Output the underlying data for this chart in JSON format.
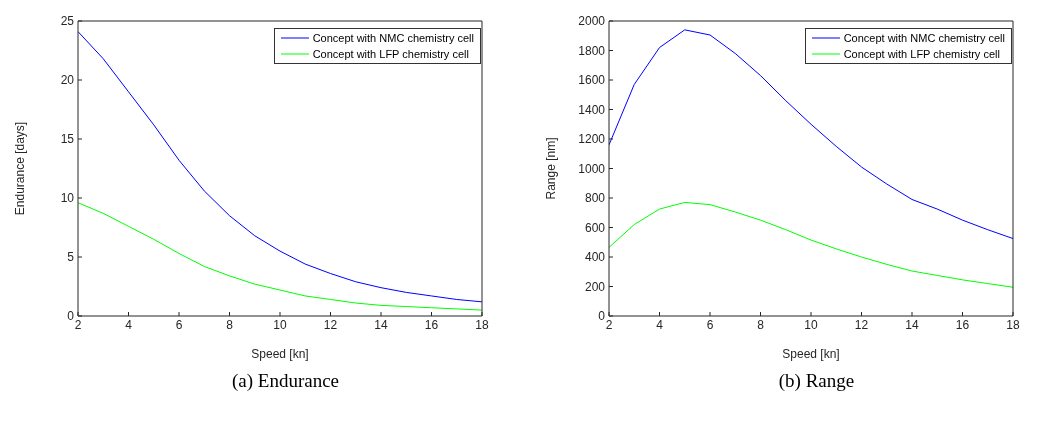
{
  "chart_data": [
    {
      "type": "line",
      "title": "(a) Endurance",
      "xlabel": "Speed [kn]",
      "ylabel": "Endurance [days]",
      "x": [
        2,
        3,
        4,
        5,
        6,
        7,
        8,
        9,
        10,
        11,
        12,
        13,
        14,
        15,
        16,
        17,
        18
      ],
      "series": [
        {
          "name": "Concept with NMC chemistry cell",
          "color": "#0000ff",
          "values": [
            24.1,
            21.8,
            19.0,
            16.2,
            13.2,
            10.6,
            8.5,
            6.8,
            5.5,
            4.4,
            3.6,
            2.9,
            2.4,
            2.0,
            1.7,
            1.4,
            1.2
          ]
        },
        {
          "name": "Concept with LFP chemistry cell",
          "color": "#00ff00",
          "values": [
            9.6,
            8.7,
            7.6,
            6.5,
            5.3,
            4.2,
            3.4,
            2.7,
            2.2,
            1.7,
            1.4,
            1.1,
            0.9,
            0.8,
            0.7,
            0.6,
            0.5
          ]
        }
      ],
      "xlim": [
        2,
        18
      ],
      "xticks": [
        2,
        4,
        6,
        8,
        10,
        12,
        14,
        16,
        18
      ],
      "ylim": [
        0,
        25
      ],
      "yticks": [
        0,
        5,
        10,
        15,
        20,
        25
      ],
      "grid": false,
      "legend": "top right",
      "marker": "none",
      "line_style": "solid"
    },
    {
      "type": "line",
      "title": "(b) Range",
      "xlabel": "Speed [kn]",
      "ylabel": "Range [nm]",
      "x": [
        2,
        3,
        4,
        5,
        6,
        7,
        8,
        9,
        10,
        11,
        12,
        13,
        14,
        15,
        16,
        17,
        18
      ],
      "series": [
        {
          "name": "Concept with NMC chemistry cell",
          "color": "#0000ff",
          "values": [
            1160,
            1570,
            1820,
            1940,
            1905,
            1780,
            1630,
            1460,
            1300,
            1150,
            1010,
            895,
            790,
            725,
            650,
            585,
            525
          ]
        },
        {
          "name": "Concept with LFP chemistry cell",
          "color": "#00ff00",
          "values": [
            465,
            620,
            725,
            770,
            755,
            705,
            650,
            585,
            515,
            455,
            400,
            350,
            305,
            275,
            245,
            220,
            195
          ]
        }
      ],
      "xlim": [
        2,
        18
      ],
      "xticks": [
        2,
        4,
        6,
        8,
        10,
        12,
        14,
        16,
        18
      ],
      "ylim": [
        0,
        2000
      ],
      "yticks": [
        0,
        200,
        400,
        600,
        800,
        1000,
        1200,
        1400,
        1600,
        1800,
        2000
      ],
      "grid": false,
      "legend": "top right",
      "marker": "none",
      "line_style": "solid"
    }
  ]
}
